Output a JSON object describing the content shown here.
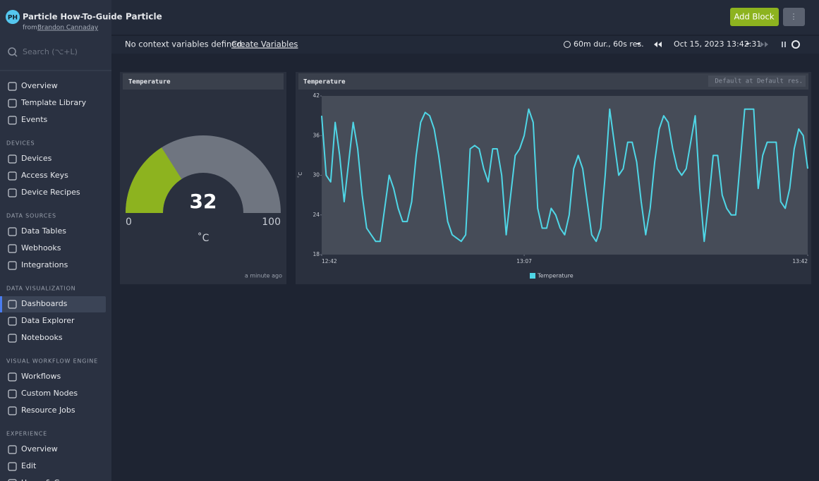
{
  "workspace": {
    "initials": "PH",
    "title": "Particle How-To-Guide",
    "from": "from",
    "author": "Brandon Cannaday"
  },
  "search_placeholder": "Search (⌥+L)",
  "nav_top": [
    "Overview",
    "Template Library",
    "Events"
  ],
  "nav_sections": [
    {
      "title": "DEVICES",
      "items": [
        "Devices",
        "Access Keys",
        "Device Recipes"
      ]
    },
    {
      "title": "DATA SOURCES",
      "items": [
        "Data Tables",
        "Webhooks",
        "Integrations"
      ]
    },
    {
      "title": "DATA VISUALIZATION",
      "items": [
        "Dashboards",
        "Data Explorer",
        "Notebooks"
      ]
    },
    {
      "title": "VISUAL WORKFLOW ENGINE",
      "items": [
        "Workflows",
        "Custom Nodes",
        "Resource Jobs"
      ]
    },
    {
      "title": "EXPERIENCE",
      "items": [
        "Overview",
        "Edit",
        "Users & Groups"
      ]
    }
  ],
  "header": {
    "title": "Particle",
    "add_block": "Add Block",
    "menu": "⋮"
  },
  "context": {
    "text": "No context variables defined.",
    "link": "Create Variables",
    "duration": "60m dur., 60s res.",
    "time": "Oct 15, 2023 13:42:31"
  },
  "chart_data": [
    {
      "type": "gauge",
      "title": "Temperature",
      "value": 32,
      "range": [
        0,
        100
      ],
      "range_labels": [
        "0",
        "100"
      ],
      "unit": "˚C",
      "footer": "a minute ago",
      "color": "#8db31f",
      "track_color": "#6f7580"
    },
    {
      "type": "line",
      "title": "Temperature",
      "badge": "Default at Default res.",
      "y_label": "˚C",
      "series": [
        {
          "name": "Temperature",
          "color": "#4fd6e6",
          "values": [
            39,
            30,
            29,
            38,
            33,
            26,
            32,
            38,
            34,
            27,
            22,
            21,
            20,
            20,
            25,
            30,
            28,
            25,
            23,
            23,
            26,
            33,
            38,
            39.5,
            39,
            37,
            33,
            28,
            23,
            21,
            20.5,
            20,
            21,
            34,
            34.5,
            34,
            31,
            29,
            34,
            34,
            30,
            21,
            27,
            33,
            34,
            36,
            40,
            38,
            25,
            22,
            22,
            25,
            24,
            22,
            21,
            24,
            31,
            33,
            31,
            26,
            21,
            20,
            22,
            30,
            40,
            35,
            30,
            31,
            35,
            35,
            32,
            26,
            21,
            25,
            32,
            37,
            39,
            38,
            34,
            31,
            30,
            31,
            35,
            39,
            28,
            20,
            26,
            33,
            33,
            27,
            25,
            24,
            24,
            32,
            40,
            40,
            40,
            28,
            33,
            35,
            35,
            35,
            26,
            25,
            28,
            34,
            37,
            36,
            31
          ]
        }
      ],
      "xlim": [
        0,
        108
      ],
      "xticks": [
        {
          "value": 0,
          "label": "12:42"
        },
        {
          "value": 45,
          "label": "13:07"
        },
        {
          "value": 108,
          "label": "13:42"
        }
      ],
      "ylim": [
        18,
        42
      ],
      "yticks": [
        18,
        24,
        30,
        36,
        42
      ]
    }
  ]
}
